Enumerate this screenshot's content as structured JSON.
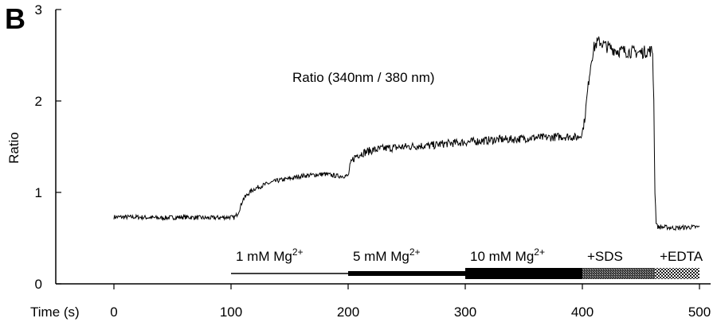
{
  "panel_label": "B",
  "chart_data": {
    "type": "line",
    "title": "Ratio (340nm / 380 nm)",
    "xlabel": "Time (s)",
    "ylabel": "Ratio",
    "xlim": [
      0,
      500
    ],
    "ylim": [
      0,
      3
    ],
    "xticks": [
      0,
      100,
      200,
      300,
      400,
      500
    ],
    "yticks": [
      0,
      1,
      2,
      3
    ],
    "grid": false,
    "series_color": "#000000",
    "series": [
      {
        "x": [
          0,
          20,
          40,
          60,
          80,
          100,
          102,
          104,
          106,
          108,
          110,
          115,
          120,
          130,
          140,
          150,
          160,
          170,
          180,
          190,
          200,
          202,
          204,
          206,
          208,
          212,
          220,
          230,
          240,
          250,
          260,
          270,
          280,
          290,
          300,
          310,
          320,
          330,
          340,
          350,
          360,
          370,
          380,
          390,
          395,
          398,
          400,
          402,
          404,
          406,
          408,
          410,
          412,
          415,
          420,
          430,
          440,
          450,
          458,
          460,
          461,
          462,
          463,
          464,
          465,
          470,
          480,
          490,
          500
        ],
        "y": [
          0.73,
          0.73,
          0.72,
          0.73,
          0.72,
          0.73,
          0.72,
          0.74,
          0.78,
          0.84,
          0.92,
          0.99,
          1.04,
          1.09,
          1.13,
          1.15,
          1.18,
          1.19,
          1.2,
          1.18,
          1.18,
          1.3,
          1.36,
          1.39,
          1.41,
          1.43,
          1.46,
          1.48,
          1.49,
          1.5,
          1.51,
          1.51,
          1.53,
          1.54,
          1.55,
          1.56,
          1.57,
          1.58,
          1.58,
          1.59,
          1.6,
          1.6,
          1.61,
          1.61,
          1.6,
          1.62,
          1.66,
          1.8,
          2.05,
          2.3,
          2.48,
          2.58,
          2.63,
          2.65,
          2.6,
          2.55,
          2.54,
          2.53,
          2.55,
          2.54,
          2.0,
          1.0,
          0.68,
          0.63,
          0.62,
          0.62,
          0.61,
          0.62,
          0.62
        ]
      }
    ],
    "annotations": [
      {
        "label": "1 mM Mg",
        "sup": "2+",
        "x_start": 100,
        "x_end": 200,
        "fill": "line"
      },
      {
        "label": "5 mM Mg",
        "sup": "2+",
        "x_start": 200,
        "x_end": 300,
        "fill": "medium"
      },
      {
        "label": "10 mM Mg",
        "sup": "2+",
        "x_start": 300,
        "x_end": 400,
        "fill": "thick"
      },
      {
        "label": "+SDS",
        "sup": "",
        "x_start": 400,
        "x_end": 462,
        "fill": "hatch-dense"
      },
      {
        "label": "+EDTA",
        "sup": "",
        "x_start": 462,
        "x_end": 500,
        "fill": "hatch-check"
      }
    ]
  }
}
